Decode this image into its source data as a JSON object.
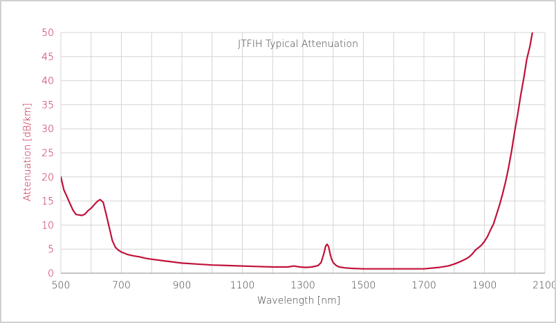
{
  "chart_data": {
    "type": "line",
    "title": "JTFIH Typical Attenuation",
    "xlabel": "Wavelength [nm]",
    "ylabel": "Attenuation [dB/km]",
    "xlim": [
      500,
      2100
    ],
    "ylim": [
      0,
      50
    ],
    "x_ticks": [
      "500",
      "700",
      "900",
      "1100",
      "1300",
      "1500",
      "1700",
      "1900",
      "2100"
    ],
    "y_ticks": [
      "0",
      "5",
      "10",
      "15",
      "20",
      "25",
      "30",
      "35",
      "40",
      "45",
      "50"
    ],
    "grid": true,
    "series": [
      {
        "color": "#c0103a",
        "x": [
          500,
          510,
          520,
          530,
          540,
          550,
          560,
          570,
          580,
          590,
          600,
          610,
          620,
          630,
          640,
          650,
          660,
          670,
          680,
          690,
          700,
          720,
          740,
          760,
          780,
          800,
          850,
          900,
          950,
          1000,
          1050,
          1100,
          1150,
          1200,
          1250,
          1270,
          1290,
          1310,
          1330,
          1350,
          1360,
          1370,
          1375,
          1380,
          1385,
          1390,
          1395,
          1400,
          1410,
          1420,
          1440,
          1460,
          1500,
          1550,
          1600,
          1650,
          1700,
          1750,
          1780,
          1800,
          1820,
          1840,
          1850,
          1860,
          1870,
          1880,
          1890,
          1900,
          1910,
          1920,
          1930,
          1940,
          1950,
          1960,
          1970,
          1980,
          1990,
          2000,
          2010,
          2020,
          2030,
          2040,
          2050,
          2060
        ],
        "values": [
          20.0,
          17.3,
          15.9,
          14.5,
          13.1,
          12.2,
          12.1,
          12.0,
          12.3,
          13.0,
          13.5,
          14.2,
          14.9,
          15.3,
          14.7,
          12.2,
          9.5,
          6.8,
          5.4,
          4.8,
          4.4,
          3.9,
          3.6,
          3.4,
          3.1,
          2.9,
          2.5,
          2.1,
          1.9,
          1.7,
          1.6,
          1.5,
          1.4,
          1.3,
          1.3,
          1.5,
          1.3,
          1.2,
          1.3,
          1.6,
          2.2,
          4.2,
          5.6,
          6.0,
          5.5,
          4.0,
          2.9,
          2.2,
          1.6,
          1.3,
          1.1,
          1.0,
          0.9,
          0.9,
          0.9,
          0.9,
          0.9,
          1.2,
          1.5,
          1.9,
          2.4,
          3.0,
          3.4,
          4.0,
          4.8,
          5.3,
          5.8,
          6.6,
          7.6,
          9.0,
          10.2,
          12.2,
          14.2,
          16.5,
          19.0,
          22.0,
          25.5,
          29.5,
          33.0,
          37.0,
          40.5,
          44.5,
          47.0,
          50.5
        ]
      }
    ]
  }
}
